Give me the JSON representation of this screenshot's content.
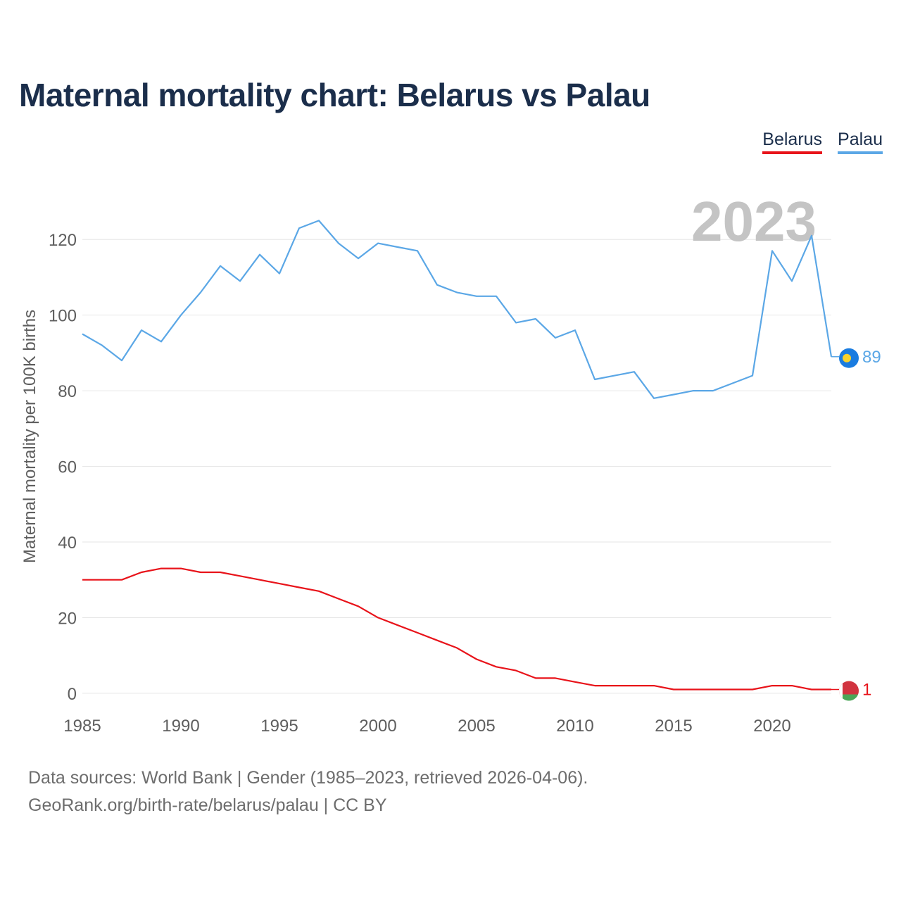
{
  "chart_data": {
    "type": "line",
    "title": "Maternal mortality chart: Belarus vs Palau",
    "ylabel": "Maternal mortality per 100K births",
    "xlabel": "",
    "year_label": "2023",
    "xlim": [
      1985,
      2023
    ],
    "ylim": [
      -3,
      134
    ],
    "x_ticks": [
      1985,
      1990,
      1995,
      2000,
      2005,
      2010,
      2015,
      2020
    ],
    "y_ticks": [
      0,
      20,
      40,
      60,
      80,
      100,
      120
    ],
    "x": [
      1985,
      1986,
      1987,
      1988,
      1989,
      1990,
      1991,
      1992,
      1993,
      1994,
      1995,
      1996,
      1997,
      1998,
      1999,
      2000,
      2001,
      2002,
      2003,
      2004,
      2005,
      2006,
      2007,
      2008,
      2009,
      2010,
      2011,
      2012,
      2013,
      2014,
      2015,
      2016,
      2017,
      2018,
      2019,
      2020,
      2021,
      2022,
      2023
    ],
    "series": [
      {
        "name": "Belarus",
        "color": "#e8131a",
        "end_label": "1",
        "values": [
          30,
          30,
          30,
          32,
          33,
          33,
          32,
          32,
          31,
          30,
          29,
          28,
          27,
          25,
          23,
          20,
          18,
          16,
          14,
          12,
          9,
          7,
          6,
          4,
          4,
          3,
          2,
          2,
          2,
          2,
          1,
          1,
          1,
          1,
          1,
          2,
          2,
          1,
          1
        ]
      },
      {
        "name": "Palau",
        "color": "#5ba7e6",
        "end_label": "89",
        "values": [
          95,
          92,
          88,
          96,
          93,
          100,
          106,
          113,
          109,
          116,
          111,
          123,
          125,
          119,
          115,
          119,
          118,
          117,
          108,
          106,
          105,
          105,
          98,
          99,
          94,
          96,
          83,
          84,
          85,
          78,
          79,
          80,
          80,
          82,
          84,
          117,
          109,
          121,
          89
        ]
      }
    ],
    "legend": [
      "Belarus",
      "Palau"
    ],
    "legend_position": "top-right",
    "grid": true
  },
  "footer": {
    "line1": "Data sources: World Bank | Gender (1985–2023, retrieved 2026-04-06).",
    "line2": "GeoRank.org/birth-rate/belarus/palau | CC BY"
  }
}
